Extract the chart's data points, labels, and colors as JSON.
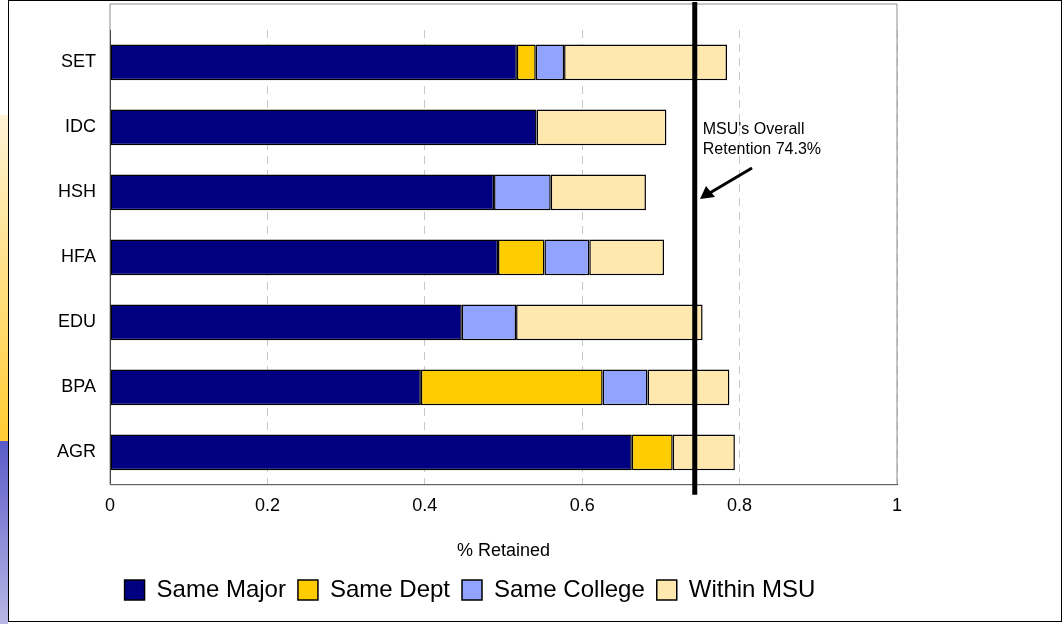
{
  "chart_data": {
    "type": "bar",
    "orientation": "horizontal",
    "stacked": true,
    "xlabel": "% Retained",
    "categories": [
      "SET",
      "IDC",
      "HSH",
      "HFA",
      "EDU",
      "BPA",
      "AGR"
    ],
    "series": [
      {
        "name": "Same Major",
        "color": "#000080",
        "values": [
          0.517,
          0.542,
          0.488,
          0.493,
          0.447,
          0.395,
          0.663
        ]
      },
      {
        "name": "Same Dept",
        "color": "#ffcc00",
        "values": [
          0.024,
          null,
          null,
          0.059,
          null,
          0.231,
          0.052
        ]
      },
      {
        "name": "Same College",
        "color": "#8fa3ff",
        "values": [
          0.036,
          null,
          0.072,
          0.057,
          0.069,
          0.057,
          null
        ]
      },
      {
        "name": "Within MSU",
        "color": "#ffe8ae",
        "values": [
          0.207,
          0.165,
          0.121,
          0.095,
          0.237,
          0.104,
          0.079
        ]
      }
    ],
    "xlim": [
      0,
      1
    ],
    "xticks": [
      0,
      0.2,
      0.4,
      0.6,
      0.8,
      1
    ],
    "grid": "x",
    "legend": "bottom",
    "ref_lines": [
      {
        "axis": "x",
        "value": 0.743,
        "label": "MSU's Overall Retention 74.3%",
        "color": "#000000"
      }
    ]
  }
}
